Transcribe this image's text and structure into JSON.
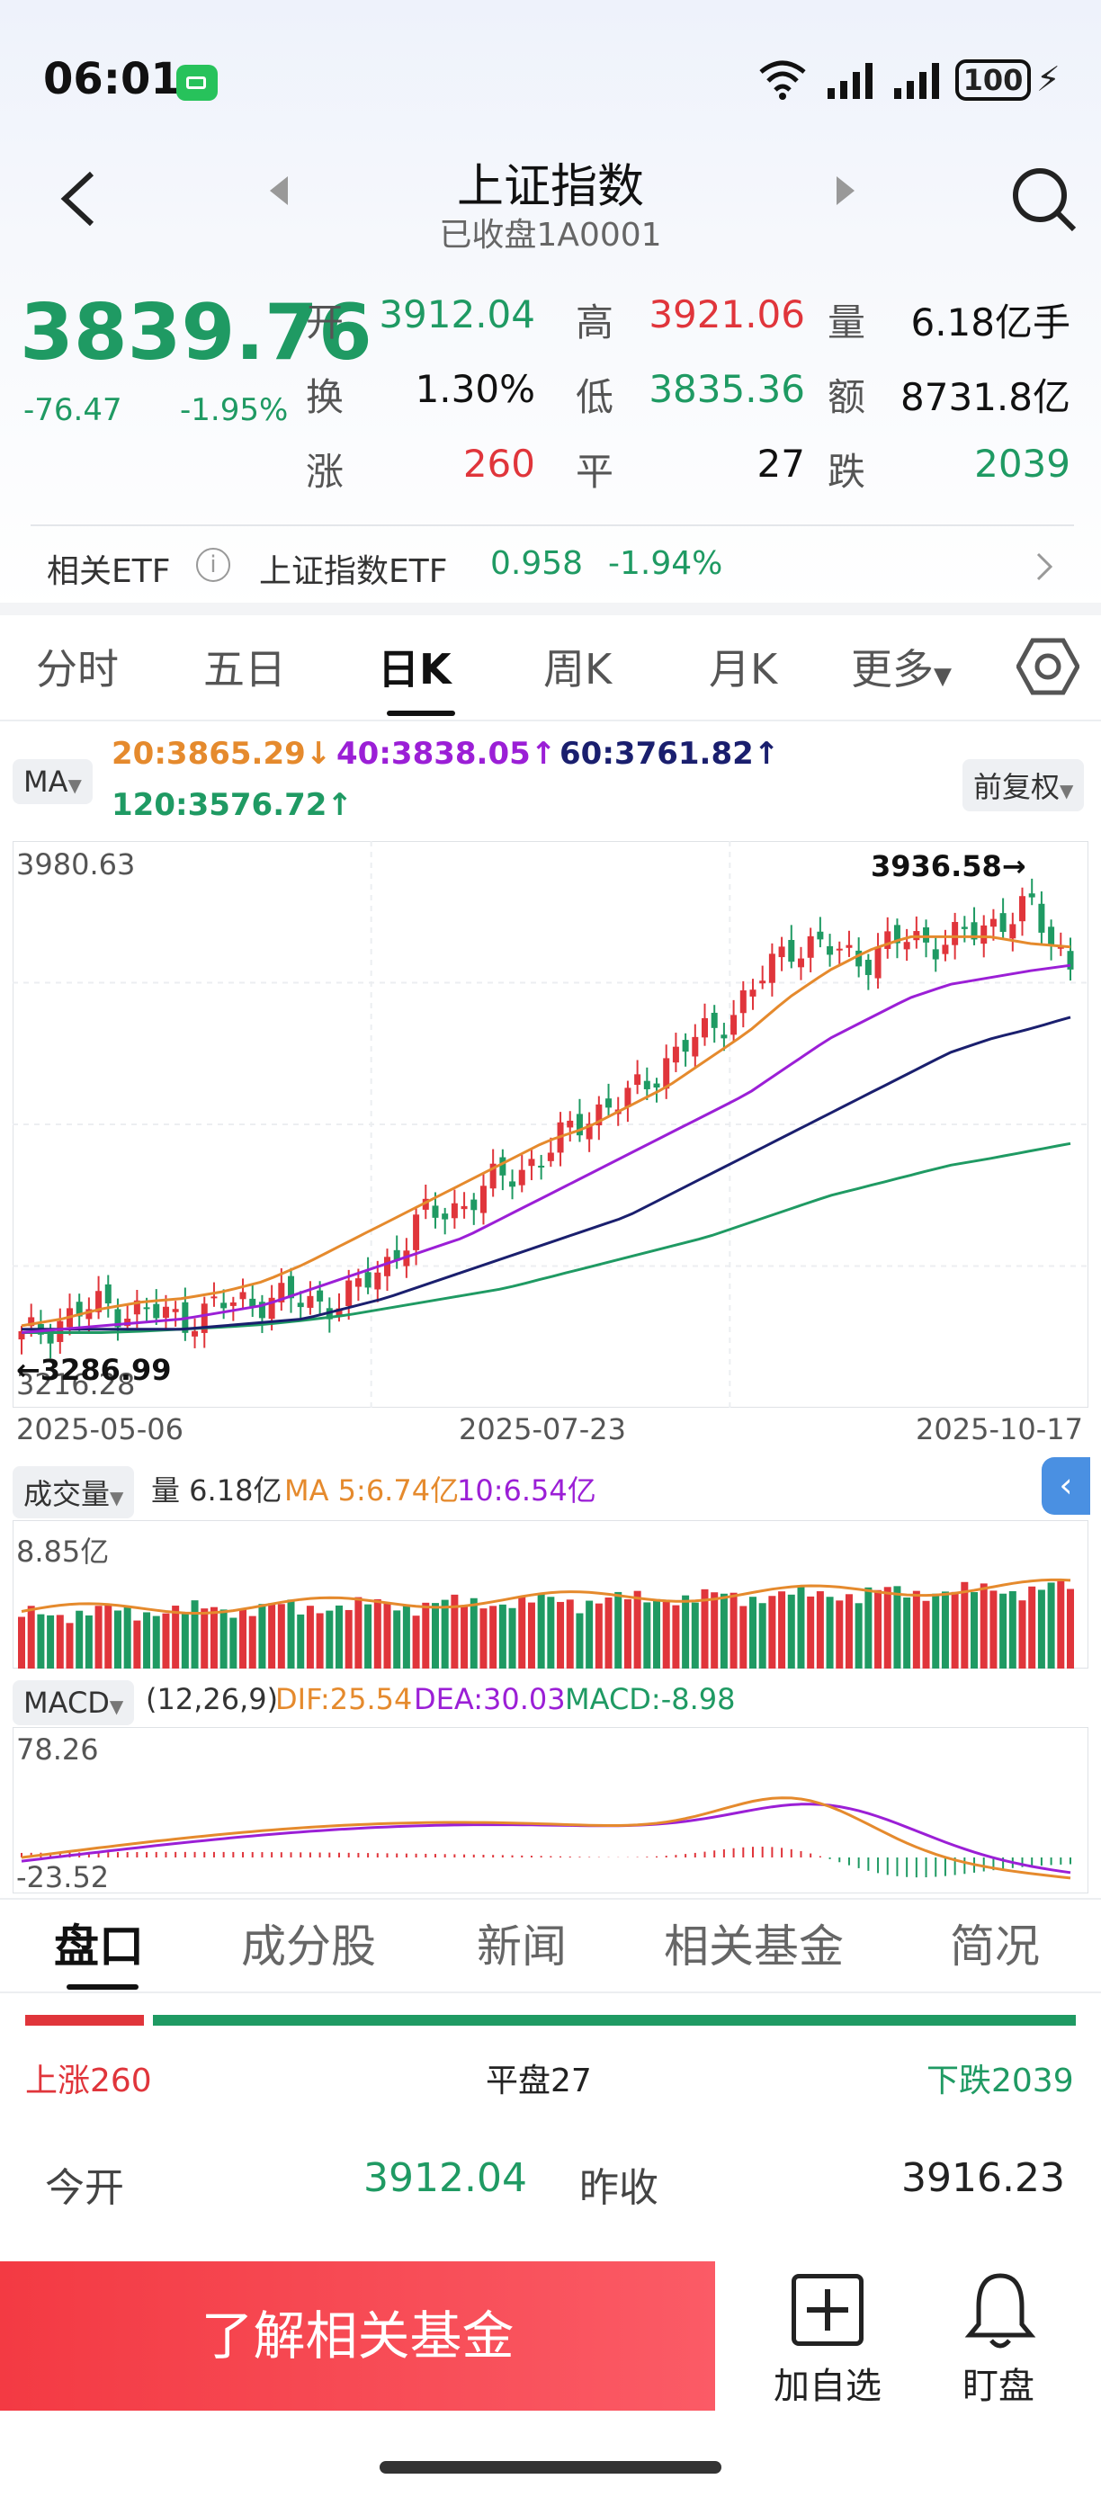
{
  "status": {
    "time": "06:01",
    "battery": "100"
  },
  "header": {
    "title": "上证指数",
    "subtitle": "已收盘1A0001"
  },
  "quote": {
    "price": "3839.76",
    "change": "-76.47",
    "change_pct": "-1.95%",
    "rows": [
      [
        {
          "l": "开",
          "v": "3912.04",
          "c": "green"
        },
        {
          "l": "高",
          "v": "3921.06",
          "c": "red"
        },
        {
          "l": "量",
          "v": "6.18亿手",
          "c": "dark"
        }
      ],
      [
        {
          "l": "换",
          "v": "1.30%",
          "c": "dark"
        },
        {
          "l": "低",
          "v": "3835.36",
          "c": "green"
        },
        {
          "l": "额",
          "v": "8731.8亿",
          "c": "dark"
        }
      ],
      [
        {
          "l": "涨",
          "v": "260",
          "c": "red"
        },
        {
          "l": "平",
          "v": "27",
          "c": "dark"
        },
        {
          "l": "跌",
          "v": "2039",
          "c": "green"
        }
      ]
    ]
  },
  "etf": {
    "label": "相关ETF",
    "name": "上证指数ETF",
    "price": "0.958",
    "pct": "-1.94%"
  },
  "chart_tabs": [
    "分时",
    "五日",
    "日K",
    "周K",
    "月K",
    "更多"
  ],
  "ma_legend": {
    "tag": "MA",
    "ma20": "20:3865.29↓",
    "ma40": "40:3838.05↑",
    "ma60": "60:3761.82↑",
    "ma120": "120:3576.72↑",
    "adjust": "前复权"
  },
  "colors": {
    "up": "#e0353b",
    "down": "#1f9a63",
    "ma20": "#e58a2d",
    "ma40": "#9b1fd6",
    "ma60": "#1a1f6e",
    "ma120": "#1f9a63"
  },
  "chart_data": {
    "type": "candlestick",
    "y_max_label": "3980.63",
    "y_min_label": "3216.28",
    "high_marker": "3936.58→",
    "low_marker": "←3286.99",
    "x_labels": [
      "2025-05-06",
      "2025-07-23",
      "2025-10-17"
    ],
    "ylim": [
      3216.28,
      3980.63
    ],
    "ma20_path": [
      3310,
      3320,
      3335,
      3345,
      3350,
      3360,
      3375,
      3400,
      3430,
      3460,
      3490,
      3520,
      3550,
      3580,
      3600,
      3630,
      3660,
      3700,
      3740,
      3790,
      3830,
      3860,
      3880,
      3880,
      3880,
      3870,
      3865
    ],
    "ma40_path": [
      3300,
      3305,
      3310,
      3315,
      3320,
      3330,
      3340,
      3360,
      3380,
      3400,
      3420,
      3440,
      3470,
      3500,
      3530,
      3560,
      3590,
      3620,
      3650,
      3690,
      3730,
      3760,
      3790,
      3810,
      3820,
      3830,
      3838
    ],
    "ma60_path": [
      3305,
      3305,
      3305,
      3305,
      3305,
      3310,
      3315,
      3320,
      3335,
      3350,
      3370,
      3390,
      3410,
      3430,
      3450,
      3470,
      3500,
      3530,
      3560,
      3590,
      3620,
      3650,
      3680,
      3710,
      3730,
      3745,
      3762
    ],
    "ma120_path": [
      3300,
      3300,
      3300,
      3302,
      3305,
      3308,
      3312,
      3318,
      3325,
      3335,
      3345,
      3355,
      3365,
      3380,
      3395,
      3410,
      3425,
      3440,
      3460,
      3480,
      3500,
      3515,
      3530,
      3545,
      3555,
      3566,
      3577
    ],
    "close_path": [
      3290,
      3320,
      3340,
      3330,
      3320,
      3340,
      3350,
      3345,
      3345,
      3400,
      3470,
      3490,
      3530,
      3560,
      3620,
      3640,
      3700,
      3740,
      3790,
      3870,
      3860,
      3850,
      3880,
      3870,
      3900,
      3920,
      3840
    ]
  },
  "volume": {
    "tag": "成交量",
    "vol": "量 6.18亿",
    "ma5": "MA 5:6.74亿",
    "ma10": "10:6.54亿",
    "max_label": "8.85亿"
  },
  "macd": {
    "tag": "MACD",
    "params": "(12,26,9)",
    "dif": "DIF:25.54",
    "dea": "DEA:30.03",
    "macd": "MACD:-8.98",
    "max_label": "78.26",
    "min_label": "-23.52"
  },
  "bottom_tabs": [
    "盘口",
    "成分股",
    "新闻",
    "相关基金",
    "简况"
  ],
  "breadth": {
    "up": "上涨260",
    "flat": "平盘27",
    "down": "下跌2039",
    "up_ratio": 0.113
  },
  "pankou": {
    "open_label": "今开",
    "open": "3912.04",
    "prev_label": "昨收",
    "prev": "3916.23"
  },
  "actions": {
    "main": "了解相关基金",
    "add": "加自选",
    "watch": "盯盘"
  }
}
